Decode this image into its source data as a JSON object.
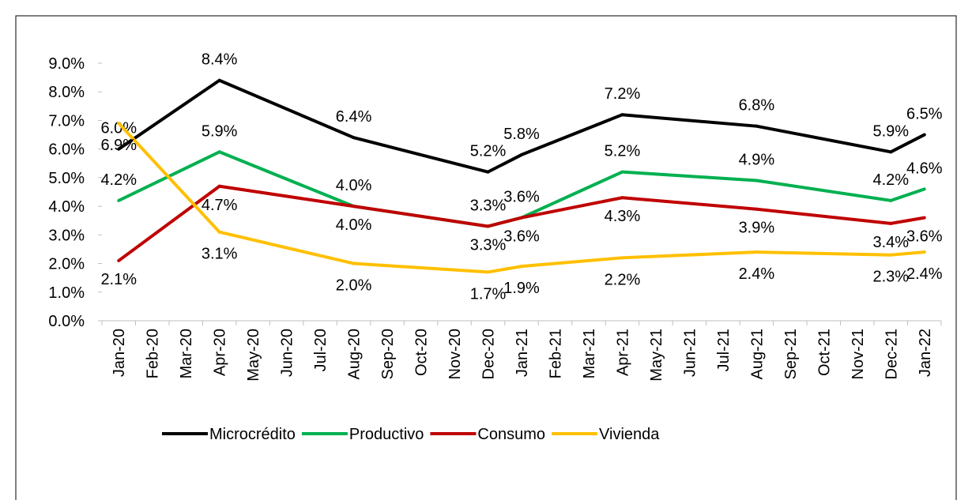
{
  "chart_data": {
    "type": "line",
    "categories": [
      "Jan-20",
      "Feb-20",
      "Mar-20",
      "Apr-20",
      "May-20",
      "Jun-20",
      "Jul-20",
      "Aug-20",
      "Sep-20",
      "Oct-20",
      "Nov-20",
      "Dec-20",
      "Jan-21",
      "Feb-21",
      "Mar-21",
      "Apr-21",
      "May-21",
      "Jun-21",
      "Jul-21",
      "Aug-21",
      "Sep-21",
      "Oct-21",
      "Nov-21",
      "Dec-21",
      "Jan-22"
    ],
    "ylim": [
      0,
      9
    ],
    "yticks": [
      {
        "value": 0,
        "label": "0.0%"
      },
      {
        "value": 1,
        "label": "1.0%"
      },
      {
        "value": 2,
        "label": "2.0%"
      },
      {
        "value": 3,
        "label": "3.0%"
      },
      {
        "value": 4,
        "label": "4.0%"
      },
      {
        "value": 5,
        "label": "5.0%"
      },
      {
        "value": 6,
        "label": "6.0%"
      },
      {
        "value": 7,
        "label": "7.0%"
      },
      {
        "value": 8,
        "label": "8.0%"
      },
      {
        "value": 9,
        "label": "9.0%"
      }
    ],
    "grid": false,
    "legend": "bottom",
    "series": [
      {
        "name": "Microcrédito",
        "color": "#000000",
        "values": [
          6.0,
          null,
          null,
          8.4,
          null,
          null,
          null,
          6.4,
          null,
          null,
          null,
          5.2,
          5.8,
          null,
          null,
          7.2,
          null,
          null,
          null,
          6.8,
          null,
          null,
          null,
          5.9,
          6.5
        ],
        "value_labels": [
          "6.0%",
          null,
          null,
          "8.4%",
          null,
          null,
          null,
          "6.4%",
          null,
          null,
          null,
          "5.2%",
          "5.8%",
          null,
          null,
          "7.2%",
          null,
          null,
          null,
          "6.8%",
          null,
          null,
          null,
          "5.9%",
          "6.5%"
        ]
      },
      {
        "name": "Productivo",
        "color": "#00b050",
        "values": [
          4.2,
          null,
          null,
          5.9,
          null,
          null,
          null,
          4.0,
          null,
          null,
          null,
          3.3,
          3.6,
          null,
          null,
          5.2,
          null,
          null,
          null,
          4.9,
          null,
          null,
          null,
          4.2,
          4.6
        ],
        "value_labels": [
          "4.2%",
          null,
          null,
          "5.9%",
          null,
          null,
          null,
          "4.0%",
          null,
          null,
          null,
          "3.3%",
          "3.6%",
          null,
          null,
          "5.2%",
          null,
          null,
          null,
          "4.9%",
          null,
          null,
          null,
          "4.2%",
          "4.6%"
        ]
      },
      {
        "name": "Consumo",
        "color": "#c00000",
        "values": [
          2.1,
          null,
          null,
          4.7,
          null,
          null,
          null,
          4.0,
          null,
          null,
          null,
          3.3,
          3.6,
          null,
          null,
          4.3,
          null,
          null,
          null,
          3.9,
          null,
          null,
          null,
          3.4,
          3.6
        ],
        "value_labels": [
          "2.1%",
          null,
          null,
          "4.7%",
          null,
          null,
          null,
          "4.0%",
          null,
          null,
          null,
          "3.3%",
          "3.6%",
          null,
          null,
          "4.3%",
          null,
          null,
          null,
          "3.9%",
          null,
          null,
          null,
          "3.4%",
          "3.6%"
        ]
      },
      {
        "name": "Vivienda",
        "color": "#ffc000",
        "values": [
          6.9,
          null,
          null,
          3.1,
          null,
          null,
          null,
          2.0,
          null,
          null,
          null,
          1.7,
          1.9,
          null,
          null,
          2.2,
          null,
          null,
          null,
          2.4,
          null,
          null,
          null,
          2.3,
          2.4
        ],
        "value_labels": [
          "6.9%",
          null,
          null,
          "3.1%",
          null,
          null,
          null,
          "2.0%",
          null,
          null,
          null,
          "1.7%",
          "1.9%",
          null,
          null,
          "2.2%",
          null,
          null,
          null,
          "2.4%",
          null,
          null,
          null,
          "2.3%",
          "2.4%"
        ]
      }
    ]
  }
}
